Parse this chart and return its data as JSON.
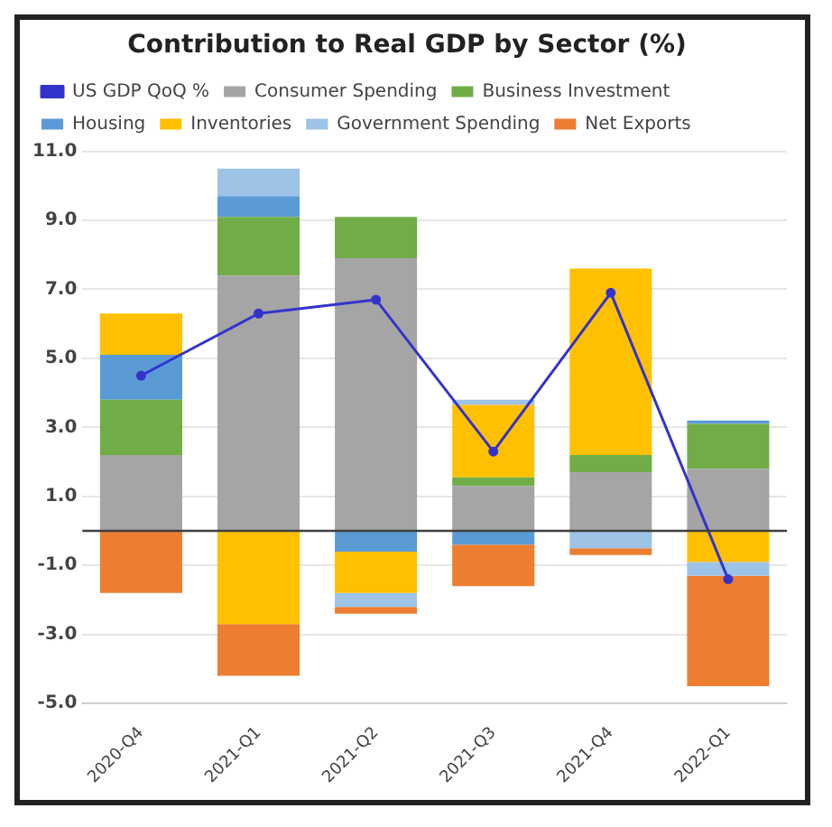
{
  "chart_data": {
    "type": "bar",
    "title": "Contribution to Real GDP by Sector (%)",
    "stacked": true,
    "categories": [
      "2020-Q4",
      "2021-Q1",
      "2021-Q2",
      "2021-Q3",
      "2021-Q4",
      "2022-Q1"
    ],
    "series": [
      {
        "name": "Consumer Spending",
        "color": "#a5a5a5",
        "values": [
          2.2,
          7.4,
          7.9,
          1.3,
          1.7,
          1.8
        ]
      },
      {
        "name": "Business Investment",
        "color": "#70ad47",
        "values": [
          1.6,
          1.7,
          1.2,
          0.25,
          0.5,
          1.3
        ]
      },
      {
        "name": "Housing",
        "color": "#5b9bd5",
        "values": [
          1.3,
          0.6,
          -0.6,
          -0.4,
          null,
          0.1
        ]
      },
      {
        "name": "Inventories",
        "color": "#ffc000",
        "values": [
          1.2,
          -2.7,
          -1.2,
          2.1,
          5.4,
          -0.9
        ]
      },
      {
        "name": "Government Spending",
        "color": "#9dc3e6",
        "values": [
          null,
          0.8,
          -0.4,
          0.15,
          -0.5,
          -0.4
        ]
      },
      {
        "name": "Net Exports",
        "color": "#ed7d31",
        "values": [
          -1.8,
          -1.5,
          -0.2,
          -1.2,
          -0.2,
          -3.2
        ]
      },
      {
        "name": "US GDP QoQ %",
        "type": "line",
        "color": "#3333cc",
        "values": [
          4.5,
          6.3,
          6.7,
          2.3,
          6.9,
          -1.4
        ]
      }
    ],
    "ylim": [
      -5,
      11
    ],
    "yticks": [
      {
        "value": -5,
        "label": "-5.0"
      },
      {
        "value": -3,
        "label": "-3.0"
      },
      {
        "value": -1,
        "label": "-1.0"
      },
      {
        "value": 1,
        "label": "1.0"
      },
      {
        "value": 3,
        "label": "3.0"
      },
      {
        "value": 5,
        "label": "5.0"
      },
      {
        "value": 7,
        "label": "7.0"
      },
      {
        "value": 9,
        "label": "9.0"
      },
      {
        "value": 11,
        "label": "11.0"
      }
    ],
    "ref_lines": [
      {
        "axis": "y",
        "value": 0,
        "color": "#404040"
      }
    ],
    "grid": "y",
    "legend": "top",
    "marker": "circle",
    "line_style": "solid"
  }
}
